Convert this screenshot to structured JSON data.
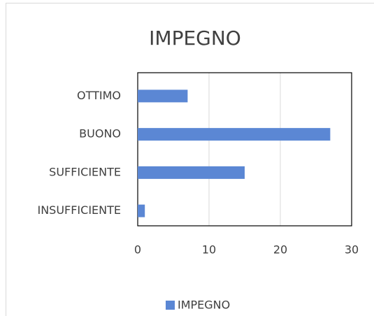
{
  "chart_data": {
    "type": "bar",
    "orientation": "horizontal",
    "title": "IMPEGNO",
    "categories": [
      "OTTIMO",
      "BUONO",
      "SUFFICIENTE",
      "INSUFFICIENTE"
    ],
    "series": [
      {
        "name": "IMPEGNO",
        "color": "#5b87d4",
        "values": [
          7,
          27,
          15,
          1
        ]
      }
    ],
    "xlim": [
      0,
      30
    ],
    "xticks": [
      0,
      10,
      20,
      30
    ],
    "grid": true,
    "legend": "bottom"
  }
}
